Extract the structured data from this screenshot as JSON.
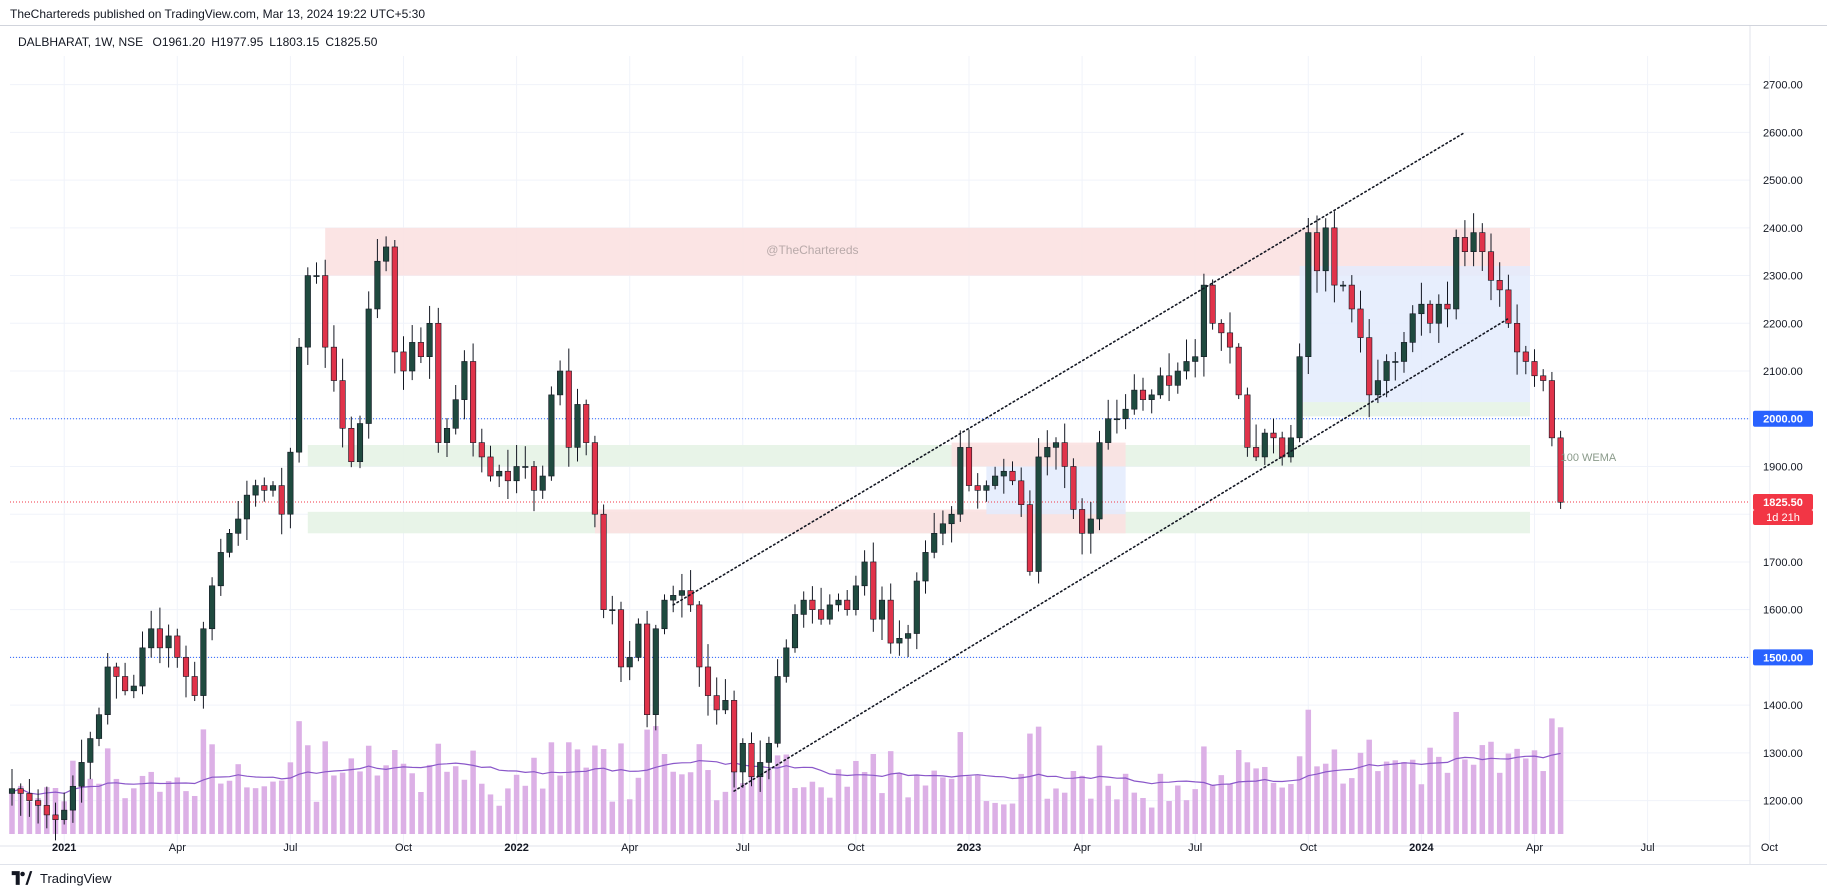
{
  "publisher_line": "TheChartereds published on TradingView.com, Mar 13, 2024 19:22 UTC+5:30",
  "ohlc": {
    "symbol": "DALBHARAT, 1W, NSE",
    "open": "O1961.20",
    "high": "H1977.95",
    "low": "L1803.15",
    "close": "C1825.50"
  },
  "watermark": "@TheChartereds",
  "brand": "TradingView",
  "colors": {
    "up": "#1f4a3f",
    "down": "#e0334a",
    "volume": "#dcb0e6",
    "volume_ma": "#8a57c9",
    "resistance_zone": "#fbe1e1",
    "support_zone": "#e5f3e6",
    "range_box": "#e3ebfd",
    "level_line": "#2962ff",
    "price_line": "#f23645"
  },
  "chart_data": {
    "type": "candlestick",
    "symbol": "DALBHARAT",
    "timeframe": "1W",
    "exchange": "NSE",
    "y_range": [
      1130,
      2760
    ],
    "y_ticks": [
      "1200.00",
      "1300.00",
      "1400.00",
      "1500.00",
      "1600.00",
      "1700.00",
      "1800.00",
      "1900.00",
      "2000.00",
      "2100.00",
      "2200.00",
      "2300.00",
      "2400.00",
      "2500.00",
      "2600.00",
      "2700.00"
    ],
    "x_ticks": [
      {
        "label": "2021",
        "week": 6,
        "bold": true
      },
      {
        "label": "Apr",
        "week": 19,
        "bold": false
      },
      {
        "label": "Jul",
        "week": 32,
        "bold": false
      },
      {
        "label": "Oct",
        "week": 45,
        "bold": false
      },
      {
        "label": "2022",
        "week": 58,
        "bold": true
      },
      {
        "label": "Apr",
        "week": 71,
        "bold": false
      },
      {
        "label": "Jul",
        "week": 84,
        "bold": false
      },
      {
        "label": "Oct",
        "week": 97,
        "bold": false
      },
      {
        "label": "2023",
        "week": 110,
        "bold": true
      },
      {
        "label": "Apr",
        "week": 123,
        "bold": false
      },
      {
        "label": "Jul",
        "week": 136,
        "bold": false
      },
      {
        "label": "Oct",
        "week": 149,
        "bold": false
      },
      {
        "label": "2024",
        "week": 162,
        "bold": true
      },
      {
        "label": "Apr",
        "week": 175,
        "bold": false
      },
      {
        "label": "Jul",
        "week": 188,
        "bold": false
      },
      {
        "label": "Oct",
        "week": 202,
        "bold": false
      }
    ],
    "closes": [
      1225,
      1215,
      1200,
      1190,
      1170,
      1160,
      1180,
      1230,
      1280,
      1330,
      1380,
      1480,
      1460,
      1430,
      1440,
      1520,
      1560,
      1520,
      1545,
      1500,
      1460,
      1420,
      1560,
      1650,
      1720,
      1760,
      1790,
      1840,
      1860,
      1850,
      1860,
      1800,
      1930,
      2150,
      2300,
      2300,
      2150,
      2080,
      1980,
      1910,
      1990,
      2230,
      2330,
      2360,
      2140,
      2100,
      2160,
      2130,
      2200,
      1950,
      1980,
      2040,
      2120,
      1950,
      1920,
      1880,
      1890,
      1870,
      1900,
      1900,
      1850,
      1880,
      2050,
      2100,
      1940,
      2030,
      1950,
      1800,
      1600,
      1600,
      1480,
      1500,
      1570,
      1380,
      1560,
      1620,
      1630,
      1640,
      1610,
      1480,
      1420,
      1390,
      1410,
      1260,
      1320,
      1250,
      1280,
      1320,
      1460,
      1520,
      1590,
      1620,
      1600,
      1580,
      1610,
      1620,
      1600,
      1650,
      1700,
      1580,
      1620,
      1530,
      1540,
      1550,
      1660,
      1720,
      1760,
      1780,
      1800,
      1940,
      1860,
      1850,
      1860,
      1880,
      1890,
      1870,
      1820,
      1680,
      1920,
      1940,
      1950,
      1900,
      1810,
      1760,
      1790,
      1950,
      2000,
      2000,
      2020,
      2060,
      2040,
      2050,
      2090,
      2070,
      2100,
      2120,
      2130,
      2280,
      2200,
      2180,
      2150,
      2050,
      1940,
      1920,
      1970,
      1960,
      1920,
      1960,
      2130,
      2390,
      2310,
      2400,
      2280,
      2280,
      2230,
      2170,
      2050,
      2080,
      2120,
      2120,
      2160,
      2220,
      2240,
      2200,
      2240,
      2230,
      2380,
      2350,
      2390,
      2350,
      2290,
      2270,
      2200,
      2140,
      2120,
      2090,
      2080,
      1960,
      1825
    ],
    "volume_ma_anchor": {
      "week": 140,
      "note": "line-breaks"
    },
    "levels": [
      {
        "price": 2000,
        "label": "2000.00",
        "color": "#2962ff",
        "style": "dotted"
      },
      {
        "price": 1500,
        "label": "1500.00",
        "color": "#2962ff",
        "style": "dotted"
      },
      {
        "price": 1825.5,
        "label": "1825.50",
        "color": "#f23645",
        "style": "dotted"
      }
    ],
    "countdown": "1d 21h",
    "zones": [
      {
        "kind": "resistance",
        "from_week": 36,
        "to_week": -1,
        "low": 2300,
        "high": 2400
      },
      {
        "kind": "support",
        "from_week": 34,
        "to_week": -1,
        "low": 1900,
        "high": 1945
      },
      {
        "kind": "support",
        "from_week": 34,
        "to_week": -1,
        "low": 1760,
        "high": 1805
      },
      {
        "kind": "resistance",
        "from_week": 67,
        "to_week": 128,
        "low": 1760,
        "high": 1810
      },
      {
        "kind": "resistance",
        "from_week": 108,
        "to_week": 128,
        "low": 1900,
        "high": 1950
      },
      {
        "kind": "support",
        "from_week": 148,
        "to_week": -1,
        "low": 2005,
        "high": 2035
      },
      {
        "kind": "range",
        "from_week": 112,
        "to_week": 128,
        "low": 1800,
        "high": 1900
      },
      {
        "kind": "range",
        "from_week": 148,
        "to_week": -1,
        "low": 2035,
        "high": 2320
      }
    ],
    "trendlines": [
      {
        "from": [
          76,
          1610
        ],
        "to": [
          167,
          2600
        ]
      },
      {
        "from": [
          83,
          1220
        ],
        "to": [
          172,
          2210
        ]
      }
    ],
    "annotation": {
      "text": "100 WEMA",
      "week": 178,
      "price": 1920
    }
  }
}
